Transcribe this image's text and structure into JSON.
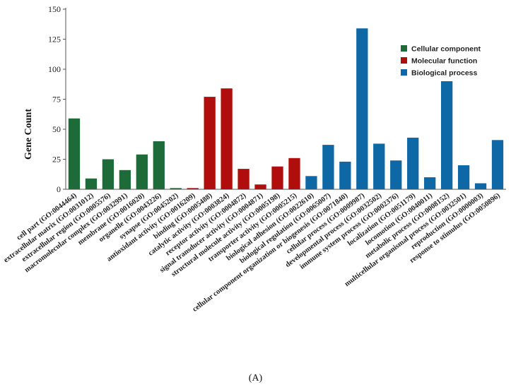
{
  "chart_data": {
    "type": "bar",
    "ylabel": "Gene Count",
    "ylim": [
      0,
      150
    ],
    "yticks": [
      0,
      25,
      50,
      75,
      100,
      125,
      150
    ],
    "grid": false,
    "legend_position": "top-right",
    "panel_label": "(A)",
    "groups": [
      {
        "name": "Cellular component",
        "color": "#1e6b3a"
      },
      {
        "name": "Molecular function",
        "color": "#b00d0d"
      },
      {
        "name": "Biological process",
        "color": "#0f68a6"
      }
    ],
    "categories": [
      {
        "label": "cell part (GO:0044464)",
        "value": 59,
        "group": 0
      },
      {
        "label": "extracellular matrix (GO:0031012)",
        "value": 9,
        "group": 0
      },
      {
        "label": "extracellular region (GO:0005576)",
        "value": 25,
        "group": 0
      },
      {
        "label": "macromolecular complex (GO:0032991)",
        "value": 16,
        "group": 0
      },
      {
        "label": "membrane (GO:0016020)",
        "value": 29,
        "group": 0
      },
      {
        "label": "organelle (GO:0043226)",
        "value": 40,
        "group": 0
      },
      {
        "label": "synapse (GO:0045202)",
        "value": 1,
        "group": 0
      },
      {
        "label": "antioxidant activity (GO:0016209)",
        "value": 1,
        "group": 1
      },
      {
        "label": "binding (GO:0005488)",
        "value": 77,
        "group": 1
      },
      {
        "label": "catalytic activity (GO:0003824)",
        "value": 84,
        "group": 1
      },
      {
        "label": "receptor activity (GO:0004872)",
        "value": 17,
        "group": 1
      },
      {
        "label": "signal transducer activity (GO:0004871)",
        "value": 4,
        "group": 1
      },
      {
        "label": "structural molecule activity (GO:0005198)",
        "value": 19,
        "group": 1
      },
      {
        "label": "transporter activity (GO:0005215)",
        "value": 26,
        "group": 1
      },
      {
        "label": "biological adhesion (GO:0022610)",
        "value": 11,
        "group": 2
      },
      {
        "label": "biological regulation (GO:0065007)",
        "value": 37,
        "group": 2
      },
      {
        "label": "cellular component organization or biogenesis (GO:0071840)",
        "value": 23,
        "group": 2
      },
      {
        "label": "cellular process (GO:0009987)",
        "value": 134,
        "group": 2
      },
      {
        "label": "developmental process (GO:0032502)",
        "value": 38,
        "group": 2
      },
      {
        "label": "immune system process (GO:0002376)",
        "value": 24,
        "group": 2
      },
      {
        "label": "localization (GO:0051179)",
        "value": 43,
        "group": 2
      },
      {
        "label": "locomotion (GO:0040011)",
        "value": 10,
        "group": 2
      },
      {
        "label": "metabolic process (GO:0008152)",
        "value": 90,
        "group": 2
      },
      {
        "label": "multicellular organismal process (GO:0032501)",
        "value": 20,
        "group": 2
      },
      {
        "label": "reproduction (GO:0000003)",
        "value": 5,
        "group": 2
      },
      {
        "label": "response to stimulus (GO:0050896)",
        "value": 41,
        "group": 2
      }
    ]
  }
}
